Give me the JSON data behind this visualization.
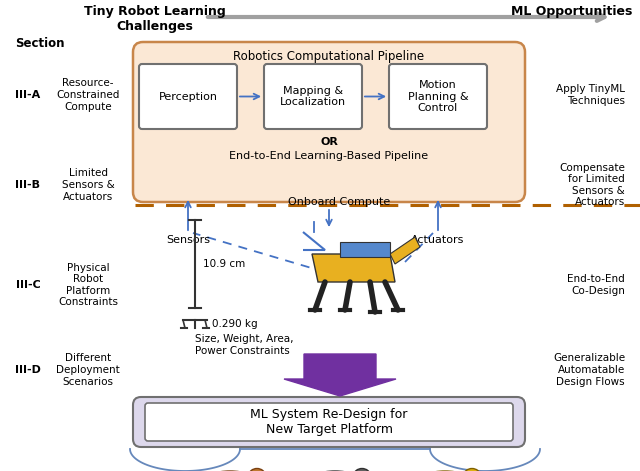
{
  "bg_color": "#ffffff",
  "pipeline_bg": "#fbe8d5",
  "pipeline_border": "#c8864a",
  "box_border": "#707070",
  "box_fill": "#ffffff",
  "redesign_bg": "#ddd8ec",
  "redesign_border": "#707070",
  "arrow_gray": "#a0a0a0",
  "arrow_blue": "#4472c4",
  "arrow_purple": "#7030a0",
  "dashed_brown": "#b06000",
  "title": "Tiny Robot Learning\nChallenges",
  "ml_opps": "ML Opportunities",
  "section_label": "Section",
  "sections": [
    "III-A",
    "III-B",
    "III-C",
    "III-D"
  ],
  "left_labels": [
    "Resource-\nConstrained\nCompute",
    "Limited\nSensors &\nActuators",
    "Physical\nRobot\nPlatform\nConstraints",
    "Different\nDeployment\nScenarios"
  ],
  "right_labels": [
    "Apply TinyML\nTechniques",
    "Compensate\nfor Limited\nSensors &\nActuators",
    "End-to-End\nCo-Design",
    "Generalizable\nAutomatable\nDesign Flows"
  ],
  "pipeline_title": "Robotics Computational Pipeline",
  "boxes": [
    "Perception",
    "Mapping &\nLocalization",
    "Motion\nPlanning &\nControl"
  ],
  "or_text": "OR",
  "e2e_text": "End-to-End Learning-Based Pipeline",
  "sensors_label": "Sensors",
  "actuators_label": "Actuators",
  "onboard_label": "Onboard Compute",
  "size_label": "10.9 cm",
  "weight_label": "0.290 kg",
  "constraints_label": "Size, Weight, Area,\nPower Constraints",
  "redesign_text": "ML System Re-Design for\nNew Target Platform"
}
